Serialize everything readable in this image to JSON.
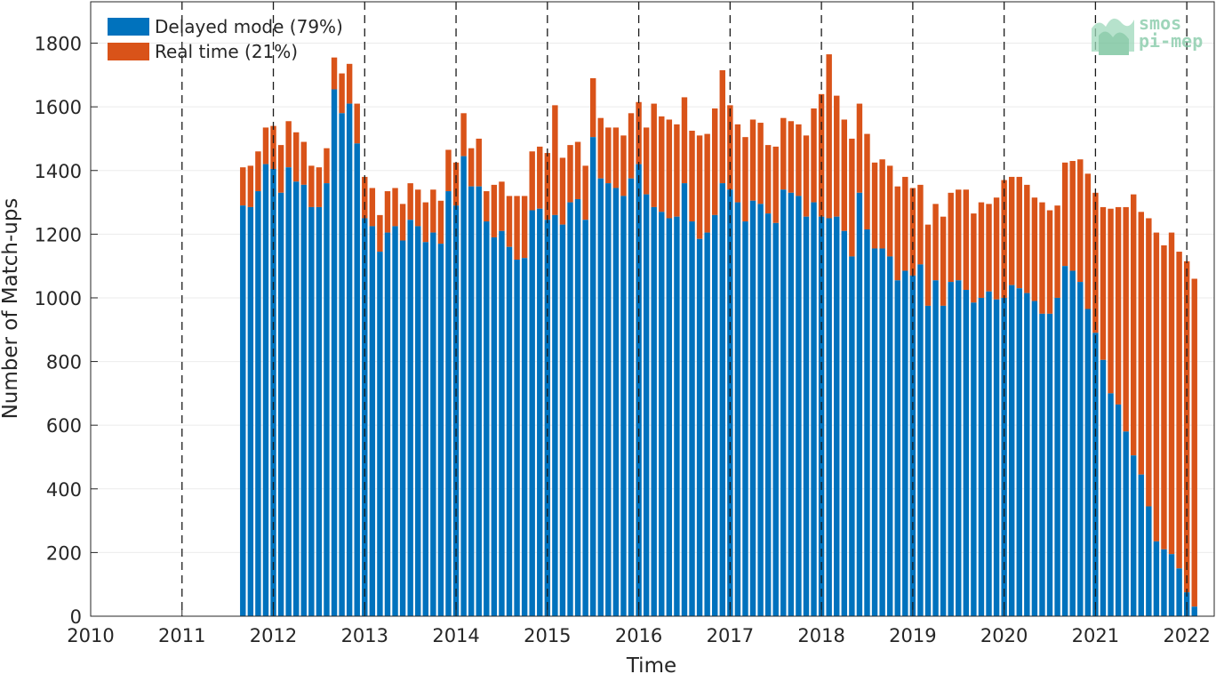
{
  "colors": {
    "delayed": "#0072BD",
    "realtime": "#D95319",
    "watermark": "#7fc8a4"
  },
  "watermark": {
    "line1": "smos",
    "line2": "pi-mep"
  },
  "chart_data": {
    "type": "bar",
    "stacked": true,
    "xlabel": "Time",
    "ylabel": "Number of Match-ups",
    "xlim": [
      2010,
      2022.3
    ],
    "ylim": [
      0,
      1930
    ],
    "xticks": [
      2010,
      2011,
      2012,
      2013,
      2014,
      2015,
      2016,
      2017,
      2018,
      2019,
      2020,
      2021,
      2022
    ],
    "yticks": [
      0,
      200,
      400,
      600,
      800,
      1000,
      1200,
      1400,
      1600,
      1800
    ],
    "grid": true,
    "vertical_year_lines": "dashed",
    "legend_position": "top-left",
    "start": "2011-09",
    "series": [
      {
        "name": "Delayed mode (79%)",
        "values": [
          1290,
          1285,
          1335,
          1420,
          1405,
          1330,
          1410,
          1365,
          1355,
          1285,
          1285,
          1360,
          1655,
          1580,
          1610,
          1485,
          1250,
          1225,
          1145,
          1205,
          1225,
          1180,
          1245,
          1225,
          1175,
          1205,
          1170,
          1335,
          1290,
          1445,
          1350,
          1350,
          1240,
          1190,
          1210,
          1160,
          1120,
          1125,
          1275,
          1280,
          1245,
          1260,
          1230,
          1300,
          1310,
          1245,
          1505,
          1375,
          1360,
          1345,
          1320,
          1375,
          1420,
          1325,
          1285,
          1270,
          1250,
          1255,
          1360,
          1240,
          1185,
          1205,
          1260,
          1360,
          1340,
          1300,
          1240,
          1305,
          1295,
          1265,
          1235,
          1340,
          1330,
          1320,
          1255,
          1300,
          1255,
          1250,
          1255,
          1210,
          1130,
          1330,
          1215,
          1155,
          1155,
          1130,
          1055,
          1085,
          1070,
          1105,
          975,
          1055,
          975,
          1050,
          1055,
          1025,
          985,
          1000,
          1020,
          995,
          1000,
          1040,
          1030,
          1015,
          990,
          950,
          950,
          1000,
          1100,
          1085,
          1050,
          965,
          890,
          805,
          700,
          665,
          580,
          505,
          445,
          345,
          235,
          210,
          195,
          150,
          75,
          30
        ],
        "total": [
          1410,
          1415,
          1460,
          1535,
          1540,
          1480,
          1555,
          1520,
          1490,
          1415,
          1410,
          1470,
          1755,
          1705,
          1735,
          1610,
          1380,
          1345,
          1260,
          1335,
          1345,
          1295,
          1360,
          1340,
          1300,
          1340,
          1305,
          1465,
          1425,
          1580,
          1470,
          1500,
          1335,
          1355,
          1365,
          1320,
          1320,
          1320,
          1460,
          1475,
          1455,
          1605,
          1440,
          1480,
          1490,
          1415,
          1690,
          1565,
          1535,
          1535,
          1510,
          1580,
          1615,
          1535,
          1610,
          1570,
          1560,
          1545,
          1630,
          1525,
          1510,
          1515,
          1595,
          1715,
          1605,
          1545,
          1505,
          1560,
          1550,
          1480,
          1475,
          1565,
          1555,
          1545,
          1510,
          1595,
          1640,
          1765,
          1635,
          1560,
          1500,
          1610,
          1515,
          1425,
          1435,
          1415,
          1350,
          1380,
          1345,
          1355,
          1230,
          1295,
          1255,
          1330,
          1340,
          1340,
          1265,
          1300,
          1295,
          1315,
          1370,
          1380,
          1380,
          1355,
          1315,
          1300,
          1275,
          1290,
          1425,
          1430,
          1435,
          1390,
          1330,
          1285,
          1280,
          1285,
          1285,
          1325,
          1270,
          1250,
          1205,
          1165,
          1205,
          1145,
          1115,
          1060
        ]
      },
      {
        "name": "Real time (21%)",
        "values": [
          120,
          130,
          125,
          115,
          135,
          150,
          145,
          155,
          135,
          130,
          125,
          110,
          100,
          125,
          125,
          125,
          130,
          120,
          115,
          130,
          120,
          115,
          115,
          115,
          125,
          135,
          135,
          130,
          135,
          135,
          120,
          150,
          95,
          165,
          155,
          160,
          200,
          195,
          185,
          195,
          210,
          345,
          210,
          180,
          180,
          170,
          185,
          190,
          175,
          190,
          190,
          205,
          195,
          210,
          325,
          300,
          310,
          290,
          270,
          285,
          325,
          310,
          335,
          355,
          265,
          245,
          265,
          255,
          255,
          215,
          240,
          225,
          225,
          225,
          255,
          295,
          385,
          515,
          380,
          350,
          370,
          280,
          300,
          270,
          280,
          285,
          295,
          295,
          275,
          250,
          255,
          240,
          280,
          280,
          285,
          315,
          280,
          300,
          275,
          320,
          370,
          340,
          350,
          340,
          325,
          350,
          325,
          290,
          325,
          345,
          385,
          425,
          440,
          480,
          580,
          620,
          705,
          780,
          825,
          905,
          970,
          955,
          1010,
          995,
          1040,
          1030
        ]
      }
    ]
  }
}
